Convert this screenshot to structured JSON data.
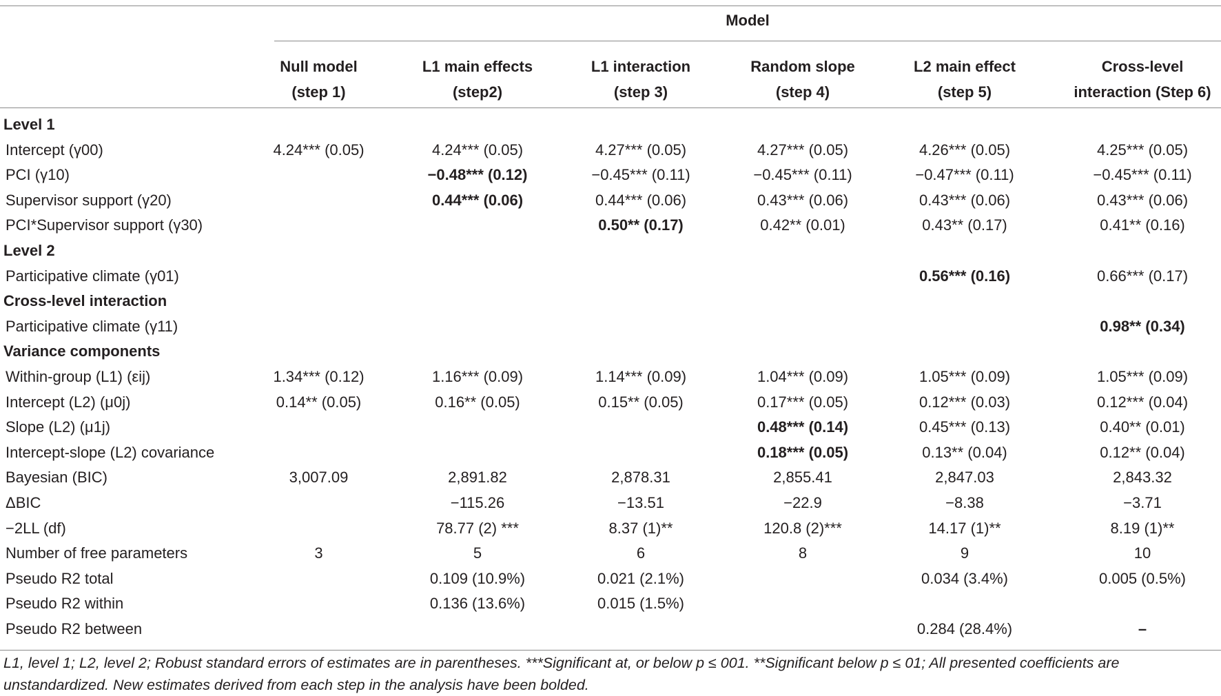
{
  "table": {
    "model_header": "Model",
    "columns": [
      {
        "line1": "Null model",
        "line2": "(step 1)"
      },
      {
        "line1": "L1 main effects",
        "line2": "(step2)"
      },
      {
        "line1": "L1 interaction",
        "line2": "(step 3)"
      },
      {
        "line1": "Random slope",
        "line2": "(step 4)"
      },
      {
        "line1": "L2 main effect",
        "line2": "(step 5)"
      },
      {
        "line1": "Cross-level",
        "line2": "interaction (Step 6)"
      }
    ],
    "rows": [
      {
        "type": "section",
        "label": "Level 1",
        "cells": [
          "",
          "",
          "",
          "",
          "",
          ""
        ]
      },
      {
        "type": "data",
        "label": "Intercept (γ00)",
        "cells": [
          "4.24*** (0.05)",
          "4.24*** (0.05)",
          "4.27*** (0.05)",
          "4.27*** (0.05)",
          "4.26*** (0.05)",
          "4.25*** (0.05)"
        ],
        "bold": [
          false,
          false,
          false,
          false,
          false,
          false
        ]
      },
      {
        "type": "data",
        "label": "PCI (γ10)",
        "cells": [
          "",
          "−0.48*** (0.12)",
          "−0.45*** (0.11)",
          "−0.45*** (0.11)",
          "−0.47*** (0.11)",
          "−0.45*** (0.11)"
        ],
        "bold": [
          false,
          true,
          false,
          false,
          false,
          false
        ]
      },
      {
        "type": "data",
        "label": "Supervisor support (γ20)",
        "cells": [
          "",
          "0.44*** (0.06)",
          "0.44*** (0.06)",
          "0.43*** (0.06)",
          "0.43*** (0.06)",
          "0.43*** (0.06)"
        ],
        "bold": [
          false,
          true,
          false,
          false,
          false,
          false
        ]
      },
      {
        "type": "data",
        "label": "PCI*Supervisor support (γ30)",
        "cells": [
          "",
          "",
          "0.50** (0.17)",
          "0.42** (0.01)",
          "0.43** (0.17)",
          "0.41** (0.16)"
        ],
        "bold": [
          false,
          false,
          true,
          false,
          false,
          false
        ]
      },
      {
        "type": "section",
        "label": "Level 2",
        "cells": [
          "",
          "",
          "",
          "",
          "",
          ""
        ]
      },
      {
        "type": "data",
        "label": "Participative climate (γ01)",
        "cells": [
          "",
          "",
          "",
          "",
          "0.56*** (0.16)",
          "0.66*** (0.17)"
        ],
        "bold": [
          false,
          false,
          false,
          false,
          true,
          false
        ]
      },
      {
        "type": "section",
        "label": "Cross-level interaction",
        "cells": [
          "",
          "",
          "",
          "",
          "",
          ""
        ]
      },
      {
        "type": "data",
        "label": "Participative climate (γ11)",
        "cells": [
          "",
          "",
          "",
          "",
          "",
          "0.98** (0.34)"
        ],
        "bold": [
          false,
          false,
          false,
          false,
          false,
          true
        ]
      },
      {
        "type": "section",
        "label": "Variance components",
        "cells": [
          "",
          "",
          "",
          "",
          "",
          ""
        ]
      },
      {
        "type": "data",
        "label": "Within-group (L1) (εij)",
        "cells": [
          "1.34*** (0.12)",
          "1.16*** (0.09)",
          "1.14*** (0.09)",
          "1.04*** (0.09)",
          "1.05*** (0.09)",
          "1.05*** (0.09)"
        ],
        "bold": [
          false,
          false,
          false,
          false,
          false,
          false
        ]
      },
      {
        "type": "data",
        "label": "Intercept (L2) (μ0j)",
        "cells": [
          "0.14** (0.05)",
          "0.16** (0.05)",
          "0.15** (0.05)",
          "0.17*** (0.05)",
          "0.12*** (0.03)",
          "0.12*** (0.04)"
        ],
        "bold": [
          false,
          false,
          false,
          false,
          false,
          false
        ]
      },
      {
        "type": "data",
        "label": "Slope (L2) (μ1j)",
        "cells": [
          "",
          "",
          "",
          "0.48*** (0.14)",
          "0.45*** (0.13)",
          "0.40** (0.01)"
        ],
        "bold": [
          false,
          false,
          false,
          true,
          false,
          false
        ]
      },
      {
        "type": "data",
        "label": "Intercept-slope (L2) covariance",
        "cells": [
          "",
          "",
          "",
          "0.18*** (0.05)",
          "0.13** (0.04)",
          "0.12** (0.04)"
        ],
        "bold": [
          false,
          false,
          false,
          true,
          false,
          false
        ]
      },
      {
        "type": "data",
        "label": "Bayesian (BIC)",
        "cells": [
          "3,007.09",
          "2,891.82",
          "2,878.31",
          "2,855.41",
          "2,847.03",
          "2,843.32"
        ],
        "bold": [
          false,
          false,
          false,
          false,
          false,
          false
        ]
      },
      {
        "type": "data",
        "label": "ΔBIC",
        "cells": [
          "",
          "−115.26",
          "−13.51",
          "−22.9",
          "−8.38",
          "−3.71"
        ],
        "bold": [
          false,
          false,
          false,
          false,
          false,
          false
        ]
      },
      {
        "type": "data",
        "label": "−2LL (df)",
        "cells": [
          "",
          "78.77 (2) ***",
          "8.37 (1)**",
          "120.8 (2)***",
          "14.17 (1)**",
          "8.19 (1)**"
        ],
        "bold": [
          false,
          false,
          false,
          false,
          false,
          false
        ]
      },
      {
        "type": "data",
        "label": "Number of free parameters",
        "cells": [
          "3",
          "5",
          "6",
          "8",
          "9",
          "10"
        ],
        "bold": [
          false,
          false,
          false,
          false,
          false,
          false
        ]
      },
      {
        "type": "data",
        "label": "Pseudo R2 total",
        "cells": [
          "",
          "0.109 (10.9%)",
          "0.021 (2.1%)",
          "",
          "0.034 (3.4%)",
          "0.005 (0.5%)"
        ],
        "bold": [
          false,
          false,
          false,
          false,
          false,
          false
        ]
      },
      {
        "type": "data",
        "label": "Pseudo R2 within",
        "cells": [
          "",
          "0.136 (13.6%)",
          "0.015 (1.5%)",
          "",
          "",
          ""
        ],
        "bold": [
          false,
          false,
          false,
          false,
          false,
          false
        ]
      },
      {
        "type": "data",
        "label": "Pseudo R2 between",
        "cells": [
          "",
          "",
          "",
          "",
          "0.284 (28.4%)",
          "–"
        ],
        "bold": [
          false,
          false,
          false,
          false,
          false,
          true
        ]
      }
    ],
    "footnote": "L1, level 1; L2, level 2; Robust standard errors of estimates are in parentheses. ***Significant at, or below p ≤ 001. **Significant below p ≤ 01; All presented coefficients are unstandardized. New estimates derived from each step in the analysis have been bolded."
  }
}
